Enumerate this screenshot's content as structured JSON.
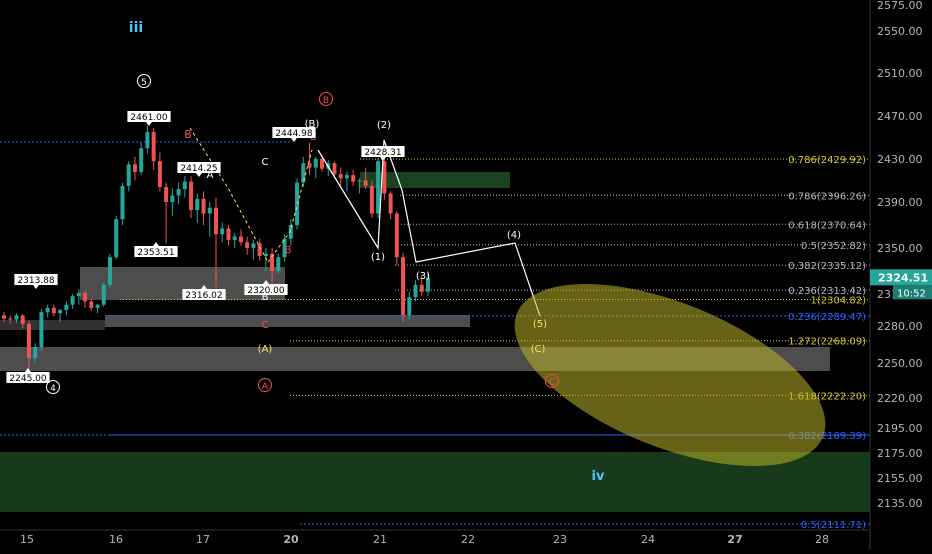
{
  "colors": {
    "background": "#000000",
    "up": "#26a69a",
    "down": "#ef5350",
    "wave_white": "#ffffff",
    "wave_red": "#ef5350",
    "wave_yellow": "#f5e663",
    "wave_blue": "#4fc3f7",
    "fib_white": "#b2b5be",
    "fib_yellow": "#d7c834",
    "fib_blue": "#2962ff",
    "zone_gray": "#8c8c8c",
    "zone_green": "#1e4d23",
    "ellipse": "#bdb228",
    "price_tag": "#ffffff",
    "time_tag": "#26a69a"
  },
  "chart_data": {
    "type": "candlestick",
    "title": "",
    "x_axis": {
      "ticks": [
        "15",
        "16",
        "17",
        "20",
        "21",
        "22",
        "23",
        "24",
        "27",
        "28"
      ],
      "bold_ticks": [
        "20",
        "27"
      ]
    },
    "y_axis": {
      "ticks": [
        2575,
        2550,
        2510,
        2470,
        2430,
        2390,
        2350,
        2310,
        2280,
        2250,
        2220,
        2195,
        2175,
        2155,
        2135
      ],
      "tick_labels": [
        "2575.00",
        "2550.00",
        "2510.00",
        "2470.00",
        "2430.00",
        "2390.00",
        "2350.00",
        "2310.00",
        "2280.00",
        "2250.00",
        "2220.00",
        "2195.00",
        "2175.00",
        "2155.00",
        "2135.00"
      ],
      "range": [
        2106,
        2583
      ]
    },
    "last_price": {
      "label": "2324.51",
      "value": 2324.51,
      "countdown": "10:52"
    },
    "grid": false,
    "candles_approx": [
      [
        2290,
        2293,
        2284,
        2287
      ],
      [
        2287,
        2290,
        2282,
        2286
      ],
      [
        2286,
        2292,
        2283,
        2290
      ],
      [
        2290,
        2291,
        2278,
        2282
      ],
      [
        2282,
        2285,
        2245,
        2254
      ],
      [
        2254,
        2266,
        2250,
        2263
      ],
      [
        2263,
        2296,
        2260,
        2293
      ],
      [
        2293,
        2300,
        2288,
        2297
      ],
      [
        2297,
        2300,
        2289,
        2292
      ],
      [
        2292,
        2296,
        2284,
        2295
      ],
      [
        2295,
        2303,
        2290,
        2300
      ],
      [
        2300,
        2310,
        2296,
        2308
      ],
      [
        2308,
        2314,
        2300,
        2311
      ],
      [
        2311,
        2312,
        2297,
        2303
      ],
      [
        2303,
        2306,
        2294,
        2297
      ],
      [
        2297,
        2301,
        2292,
        2300
      ],
      [
        2300,
        2320,
        2298,
        2318
      ],
      [
        2318,
        2345,
        2315,
        2342
      ],
      [
        2342,
        2378,
        2340,
        2375
      ],
      [
        2375,
        2408,
        2370,
        2405
      ],
      [
        2405,
        2428,
        2400,
        2425
      ],
      [
        2425,
        2432,
        2410,
        2418
      ],
      [
        2418,
        2445,
        2415,
        2440
      ],
      [
        2440,
        2461,
        2435,
        2455
      ],
      [
        2455,
        2459,
        2420,
        2428
      ],
      [
        2428,
        2436,
        2400,
        2404
      ],
      [
        2404,
        2408,
        2354,
        2390
      ],
      [
        2390,
        2403,
        2378,
        2396
      ],
      [
        2396,
        2408,
        2388,
        2402
      ],
      [
        2402,
        2414,
        2394,
        2409
      ],
      [
        2409,
        2414,
        2376,
        2383
      ],
      [
        2383,
        2398,
        2372,
        2393
      ],
      [
        2393,
        2400,
        2370,
        2380
      ],
      [
        2380,
        2390,
        2360,
        2385
      ],
      [
        2385,
        2394,
        2316,
        2362
      ],
      [
        2362,
        2372,
        2355,
        2367
      ],
      [
        2367,
        2370,
        2352,
        2357
      ],
      [
        2357,
        2363,
        2350,
        2360
      ],
      [
        2360,
        2366,
        2352,
        2355
      ],
      [
        2355,
        2360,
        2344,
        2350
      ],
      [
        2350,
        2357,
        2340,
        2354
      ],
      [
        2354,
        2358,
        2339,
        2343
      ],
      [
        2343,
        2350,
        2330,
        2345
      ],
      [
        2345,
        2350,
        2320,
        2330
      ],
      [
        2330,
        2345,
        2328,
        2342
      ],
      [
        2342,
        2362,
        2338,
        2358
      ],
      [
        2358,
        2375,
        2352,
        2370
      ],
      [
        2370,
        2412,
        2366,
        2408
      ],
      [
        2408,
        2432,
        2404,
        2426
      ],
      [
        2426,
        2445,
        2415,
        2422
      ],
      [
        2422,
        2432,
        2412,
        2430
      ],
      [
        2430,
        2434,
        2418,
        2421
      ],
      [
        2421,
        2429,
        2414,
        2426
      ],
      [
        2426,
        2428,
        2412,
        2416
      ],
      [
        2416,
        2422,
        2405,
        2412
      ],
      [
        2412,
        2418,
        2400,
        2415
      ],
      [
        2415,
        2420,
        2405,
        2409
      ],
      [
        2409,
        2412,
        2398,
        2410
      ],
      [
        2410,
        2422,
        2402,
        2405
      ],
      [
        2405,
        2410,
        2376,
        2380
      ],
      [
        2380,
        2431,
        2376,
        2428
      ],
      [
        2428,
        2429,
        2392,
        2398
      ],
      [
        2398,
        2400,
        2375,
        2380
      ],
      [
        2380,
        2382,
        2335,
        2342
      ],
      [
        2342,
        2346,
        2284,
        2290
      ],
      [
        2290,
        2312,
        2286,
        2307
      ],
      [
        2307,
        2322,
        2303,
        2318
      ],
      [
        2318,
        2326,
        2308,
        2312
      ],
      [
        2312,
        2329,
        2308,
        2324
      ]
    ],
    "wave_labels": [
      {
        "text": "iii",
        "color": "blue"
      },
      {
        "text": "5",
        "color": "white",
        "circled": true
      },
      {
        "text": "B",
        "color": "red"
      },
      {
        "text": "A",
        "color": "white"
      },
      {
        "text": "C",
        "color": "white"
      },
      {
        "text": "B",
        "color": "red"
      },
      {
        "text": "B",
        "color": "white"
      },
      {
        "text": "C",
        "color": "red"
      },
      {
        "text": "(B)",
        "color": "white"
      },
      {
        "text": "C",
        "color": "red"
      },
      {
        "text": "B",
        "color": "red",
        "circled": true
      },
      {
        "text": "(2)",
        "color": "white"
      },
      {
        "text": "(1)",
        "color": "white"
      },
      {
        "text": "(3)",
        "color": "white"
      },
      {
        "text": "(4)",
        "color": "white"
      },
      {
        "text": "(5)",
        "color": "yellow"
      },
      {
        "text": "(C)",
        "color": "yellow"
      },
      {
        "text": "(A)",
        "color": "yellow"
      },
      {
        "text": "A",
        "color": "red",
        "circled": true
      },
      {
        "text": "C",
        "color": "red",
        "circled": true
      },
      {
        "text": "4",
        "color": "white",
        "circled": true
      },
      {
        "text": "iv",
        "color": "blue"
      }
    ],
    "price_tags": [
      "2461.00",
      "2414.25",
      "2444.98",
      "2428.31",
      "2353.51",
      "2313.88",
      "2316.02",
      "2320.00",
      "2245.00"
    ],
    "fib_levels": [
      {
        "label": "0.786(2429.92)",
        "value": 2429.92,
        "color": "yellow"
      },
      {
        "label": "0.786(2396.26)",
        "value": 2396.26,
        "color": "white"
      },
      {
        "label": "0.618(2370.64)",
        "value": 2370.64,
        "color": "white"
      },
      {
        "label": "0.5(2352.82)",
        "value": 2352.82,
        "color": "white"
      },
      {
        "label": "0.382(2335.12)",
        "value": 2335.12,
        "color": "white"
      },
      {
        "label": "0.236(2313.42)",
        "value": 2313.42,
        "color": "white"
      },
      {
        "label": "1(2304.82)",
        "value": 2304.82,
        "color": "yellow"
      },
      {
        "label": "0.236(2289.47)",
        "value": 2289.47,
        "color": "blue"
      },
      {
        "label": "1.272(2268.09)",
        "value": 2268.09,
        "color": "yellow"
      },
      {
        "label": "1.618(2222.20)",
        "value": 2222.2,
        "color": "yellow"
      },
      {
        "label": "0.382(2189.39)",
        "value": 2189.39,
        "color": "blue"
      },
      {
        "label": "0.5(2111.71)",
        "value": 2111.71,
        "color": "blue"
      }
    ]
  }
}
